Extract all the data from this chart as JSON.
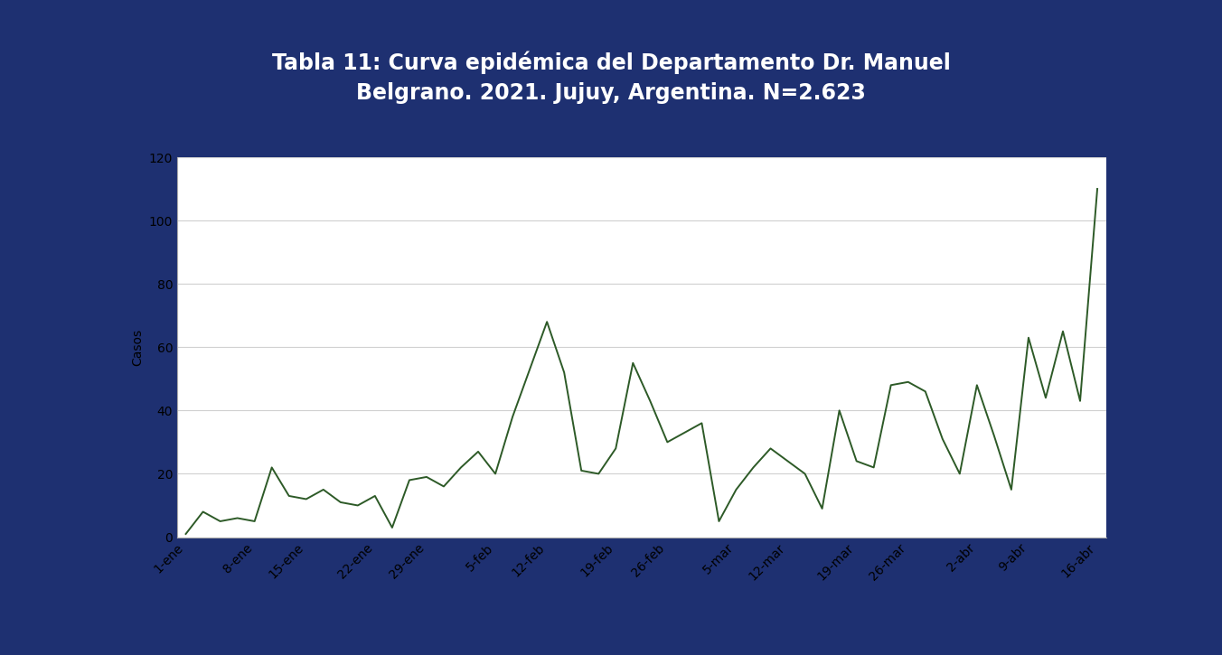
{
  "title_line1": "Tabla 11: Curva epidémica del Departamento Dr. Manuel",
  "title_line2": "Belgrano. 2021. Jujuy, Argentina. N=2.623",
  "ylabel": "Casos",
  "background_color": "#1e3071",
  "chart_bg": "#ffffff",
  "line_color": "#2d5a27",
  "title_color": "#ffffff",
  "tick_labels": [
    "1-ene",
    "8-ene",
    "15-ene",
    "22-ene",
    "29-ene",
    "5-feb",
    "12-feb",
    "19-feb",
    "26-feb",
    "5-mar",
    "12-mar",
    "19-mar",
    "26-mar",
    "2-abr",
    "9-abr",
    "16-abr"
  ],
  "values": [
    1,
    8,
    5,
    6,
    5,
    22,
    13,
    12,
    15,
    11,
    10,
    13,
    3,
    18,
    19,
    16,
    22,
    27,
    20,
    38,
    53,
    68,
    52,
    21,
    20,
    28,
    55,
    43,
    30,
    33,
    36,
    5,
    15,
    22,
    28,
    24,
    20,
    9,
    40,
    24,
    22,
    48,
    49,
    46,
    31,
    20,
    48,
    32,
    15,
    63,
    44,
    65,
    43,
    110
  ],
  "ylim": [
    0,
    120
  ],
  "yticks": [
    0,
    20,
    40,
    60,
    80,
    100,
    120
  ],
  "grid_color": "#d0d0d0",
  "title_fontsize": 17,
  "axis_fontsize": 10,
  "bottom_colors": [
    "#d9534f",
    "#2b9eaa",
    "#c9a227"
  ],
  "bottom_bar_height": 0.06
}
